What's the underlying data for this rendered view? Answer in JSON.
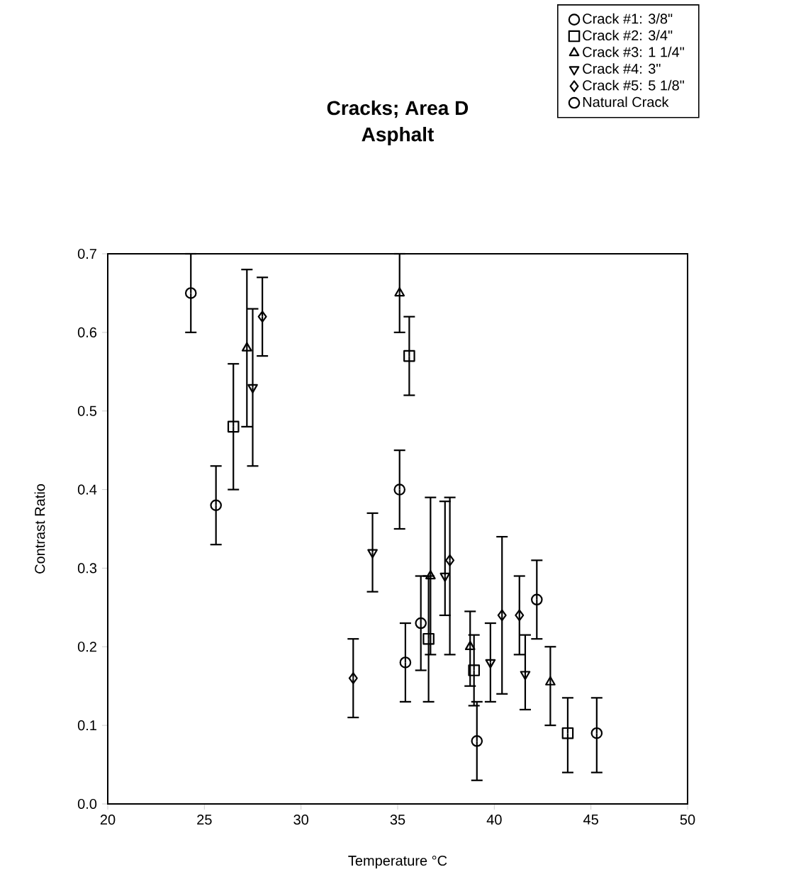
{
  "chart_data": {
    "type": "scatter",
    "title": "Cracks; Area D",
    "subtitle": "Asphalt",
    "xlabel": "Temperature °C",
    "ylabel": "Contrast Ratio",
    "xlim": [
      20,
      50
    ],
    "xticks": [
      20,
      25,
      30,
      35,
      40,
      45,
      50
    ],
    "ylim": [
      0,
      0.7
    ],
    "yticks": [
      {
        "value": 0,
        "label": "0.0"
      },
      0.1,
      0.2,
      0.3,
      0.4,
      0.5,
      0.6,
      0.7
    ],
    "legend": "top right",
    "grid": false,
    "series": [
      {
        "name": "Crack #1: 3/8\"",
        "color": "#000000",
        "marker": "circle",
        "x": [
          25.6,
          35.4,
          36.2,
          39.1,
          42.2
        ],
        "values": [
          0.38,
          0.18,
          0.23,
          0.08,
          0.26
        ],
        "errors": [
          [
            0.33,
            0.43
          ],
          [
            0.13,
            0.23
          ],
          [
            0.17,
            0.29
          ],
          [
            0.03,
            0.13
          ],
          [
            0.21,
            0.31
          ]
        ]
      },
      {
        "name": "Crack #2: 3/4\"",
        "color": "#000000",
        "marker": "square",
        "x": [
          26.5,
          35.6,
          36.6,
          38.95,
          43.8
        ],
        "values": [
          0.48,
          0.57,
          0.21,
          0.17,
          0.09
        ],
        "errors": [
          [
            0.4,
            0.56
          ],
          [
            0.52,
            0.62
          ],
          [
            0.13,
            0.29
          ],
          [
            0.125,
            0.215
          ],
          [
            0.04,
            0.135
          ]
        ]
      },
      {
        "name": "Crack #3: 1 1/4\"",
        "color": "#000000",
        "marker": "triangle",
        "x": [
          27.2,
          35.1,
          36.7,
          38.75,
          42.9
        ],
        "values": [
          0.58,
          0.65,
          0.29,
          0.2,
          0.155
        ],
        "errors": [
          [
            0.48,
            0.68
          ],
          [
            0.6,
            0.7
          ],
          [
            0.19,
            0.39
          ],
          [
            0.15,
            0.245
          ],
          [
            0.1,
            0.2
          ]
        ]
      },
      {
        "name": "Crack #4: 3\"",
        "color": "#000000",
        "marker": "triangle-down",
        "x": [
          27.5,
          33.7,
          37.45,
          39.8,
          41.6
        ],
        "values": [
          0.53,
          0.32,
          0.29,
          0.18,
          0.165
        ],
        "errors": [
          [
            0.43,
            0.63
          ],
          [
            0.27,
            0.37
          ],
          [
            0.24,
            0.385
          ],
          [
            0.13,
            0.23
          ],
          [
            0.12,
            0.215
          ]
        ]
      },
      {
        "name": "Crack #5: 5 1/8\"",
        "color": "#000000",
        "marker": "diamond",
        "x": [
          28.0,
          32.7,
          37.7,
          40.4,
          41.3
        ],
        "values": [
          0.62,
          0.16,
          0.31,
          0.24,
          0.24
        ],
        "errors": [
          [
            0.57,
            0.67
          ],
          [
            0.11,
            0.21
          ],
          [
            0.19,
            0.39
          ],
          [
            0.14,
            0.34
          ],
          [
            0.19,
            0.29
          ]
        ]
      },
      {
        "name": "Natural Crack",
        "color": "#000000",
        "marker": "circle",
        "x": [
          24.3,
          35.1,
          45.3
        ],
        "values": [
          0.65,
          0.4,
          0.09
        ],
        "errors": [
          [
            0.6,
            0.7
          ],
          [
            0.35,
            0.45
          ],
          [
            0.04,
            0.135
          ]
        ]
      }
    ]
  }
}
